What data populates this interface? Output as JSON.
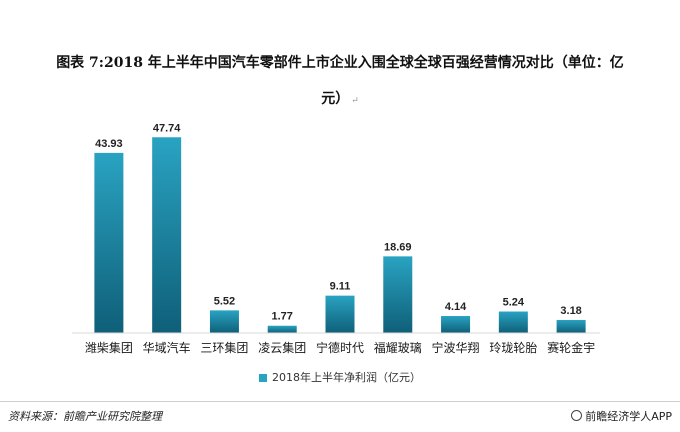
{
  "title": {
    "line1": "图表 7:2018 年上半年中国汽车零部件上市企业入围全球全球百强经营情况对比（单位：亿",
    "line2": "元）"
  },
  "colors": {
    "bar_top": "#29a3c2",
    "bar_bottom": "#0f5f78",
    "axis": "#d9d9d9"
  },
  "chart_data": {
    "type": "bar",
    "categories": [
      "潍柴集团",
      "华域汽车",
      "三环集团",
      "凌云集团",
      "宁德时代",
      "福耀玻璃",
      "宁波华翔",
      "玲珑轮胎",
      "赛轮金宇"
    ],
    "series": [
      {
        "name": "2018年上半年净利润（亿元）",
        "values": [
          43.93,
          47.74,
          5.52,
          1.77,
          9.11,
          18.69,
          4.14,
          5.24,
          3.18
        ]
      }
    ],
    "ylim": [
      0,
      50
    ],
    "grid": false,
    "legend": "bottom"
  },
  "footer": {
    "source": "资料来源：前瞻产业研究院整理",
    "brand": "前瞻经济学人APP"
  }
}
